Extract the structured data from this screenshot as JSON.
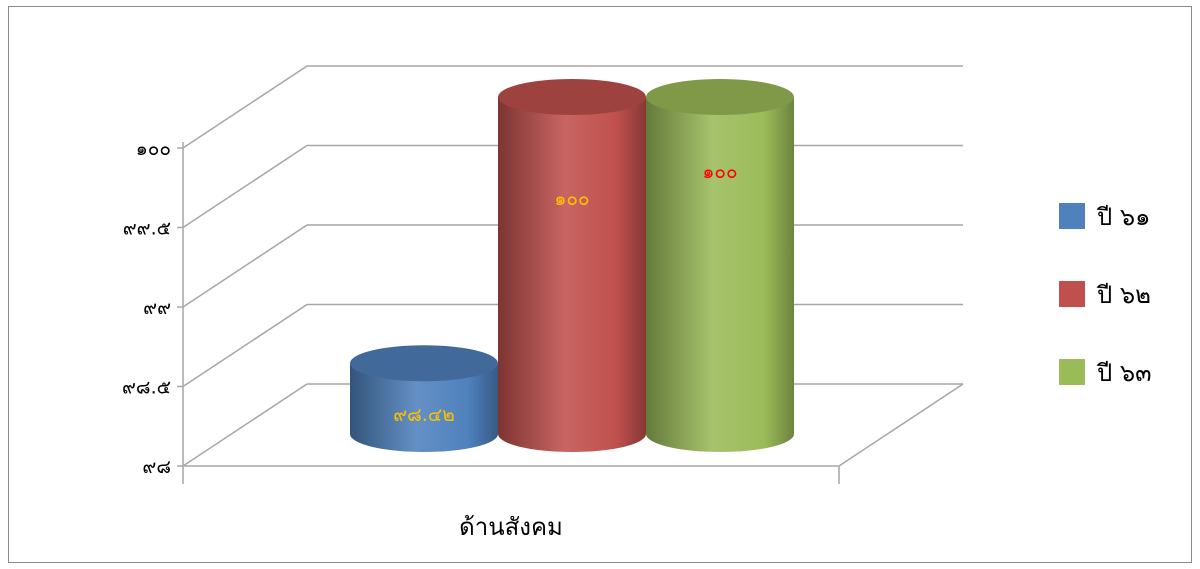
{
  "chart_data": {
    "type": "bar",
    "style": "3d-cylinder",
    "categories": [
      "ด้านสังคม"
    ],
    "series": [
      {
        "name": "ปี ๖๑",
        "values": [
          98.42
        ],
        "label": "๙๘.๔๒",
        "color": "#4f81bd",
        "label_color": "#ffc000"
      },
      {
        "name": "ปี ๖๒",
        "values": [
          100
        ],
        "label": "๑๐๐",
        "color": "#c0504d",
        "label_color": "#ffc000"
      },
      {
        "name": "ปี ๖๓",
        "values": [
          100
        ],
        "label": "๑๐๐",
        "color": "#9bbb59",
        "label_color": "#ff0000"
      }
    ],
    "ylim": [
      98,
      100
    ],
    "yticks": [
      {
        "value": 98,
        "label": "๙๘"
      },
      {
        "value": 98.5,
        "label": "๙๘.๕"
      },
      {
        "value": 99,
        "label": "๙๙"
      },
      {
        "value": 99.5,
        "label": "๙๙.๕"
      },
      {
        "value": 100,
        "label": "๑๐๐"
      }
    ],
    "grid": true,
    "legend_position": "right"
  }
}
